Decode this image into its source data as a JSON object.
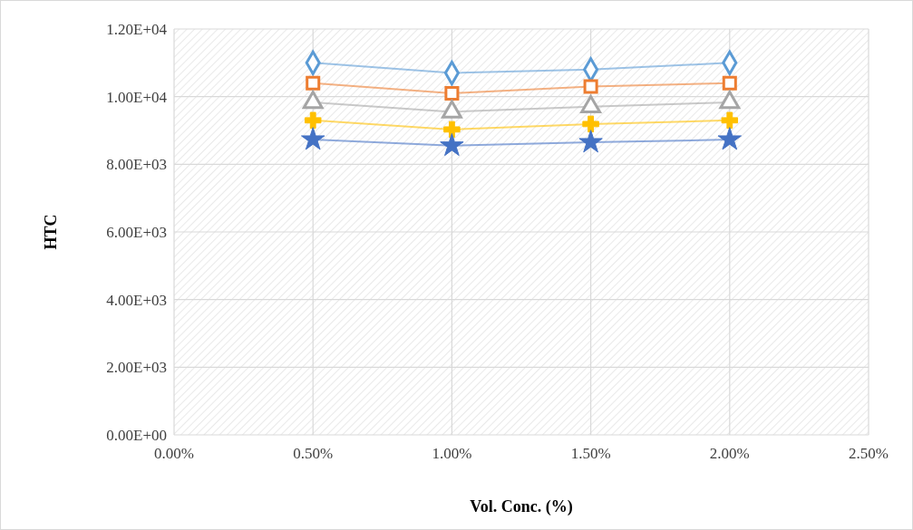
{
  "chart_data": {
    "type": "line",
    "xlabel": "Vol. Conc. (%)",
    "ylabel": "HTC",
    "x": [
      0.5,
      1.0,
      1.5,
      2.0
    ],
    "series": [
      {
        "color": "#5b9bd5",
        "marker": "diamond",
        "values": [
          11000,
          10700,
          10800,
          11000
        ]
      },
      {
        "color": "#ed7d31",
        "marker": "square",
        "values": [
          10400,
          10100,
          10300,
          10400
        ]
      },
      {
        "color": "#a5a5a5",
        "marker": "triangle",
        "values": [
          9830,
          9550,
          9700,
          9830
        ]
      },
      {
        "color": "#ffc000",
        "marker": "cross",
        "values": [
          9300,
          9030,
          9190,
          9300
        ]
      },
      {
        "color": "#4472c4",
        "marker": "star",
        "values": [
          8730,
          8550,
          8650,
          8730
        ]
      }
    ],
    "xlim": [
      0,
      2.5
    ],
    "xticks": [
      {
        "value": 0,
        "label": "0.00%"
      },
      {
        "value": 0.5,
        "label": "0.50%"
      },
      {
        "value": 1.0,
        "label": "1.00%"
      },
      {
        "value": 1.5,
        "label": "1.50%"
      },
      {
        "value": 2.0,
        "label": "2.00%"
      },
      {
        "value": 2.5,
        "label": "2.50%"
      }
    ],
    "ylim": [
      0,
      12000
    ],
    "yticks": [
      {
        "value": 0,
        "label": "0.00E+00"
      },
      {
        "value": 2000,
        "label": "2.00E+03"
      },
      {
        "value": 4000,
        "label": "4.00E+03"
      },
      {
        "value": 6000,
        "label": "6.00E+03"
      },
      {
        "value": 8000,
        "label": "8.00E+03"
      },
      {
        "value": 10000,
        "label": "1.00E+04"
      },
      {
        "value": 12000,
        "label": "1.20E+04"
      }
    ],
    "grid": true
  }
}
